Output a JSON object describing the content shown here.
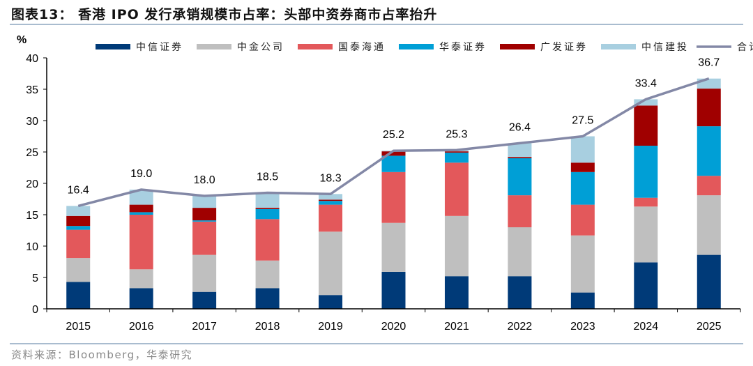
{
  "title": "图表13：  香港 IPO 发行承销规模市占率：头部中资券商市占率抬升",
  "source": "资料来源：Bloomberg，华泰研究",
  "chart_data": {
    "type": "bar",
    "stacked": true,
    "ylabel": "%",
    "ylim": [
      0,
      40
    ],
    "yticks": [
      0,
      5,
      10,
      15,
      20,
      25,
      30,
      35,
      40
    ],
    "legend_position": "top",
    "categories": [
      "2015",
      "2016",
      "2017",
      "2018",
      "2019",
      "2020",
      "2021",
      "2022",
      "2023",
      "2024",
      "2025"
    ],
    "series": [
      {
        "name": "中信证券",
        "color": "#003a78",
        "values": [
          4.3,
          3.3,
          2.7,
          3.3,
          2.2,
          5.9,
          5.2,
          5.2,
          2.6,
          7.4,
          8.6
        ]
      },
      {
        "name": "中金公司",
        "color": "#bfbfbf",
        "values": [
          3.8,
          3.0,
          5.9,
          4.4,
          10.1,
          7.8,
          9.6,
          7.8,
          9.1,
          8.9,
          9.5
        ]
      },
      {
        "name": "国泰海通",
        "color": "#e3585b",
        "values": [
          4.5,
          8.7,
          5.3,
          6.6,
          4.3,
          8.1,
          8.5,
          5.1,
          4.9,
          1.4,
          3.1
        ]
      },
      {
        "name": "华泰证券",
        "color": "#009fd6",
        "values": [
          0.6,
          0.4,
          0.2,
          1.6,
          0.6,
          2.6,
          1.6,
          5.9,
          5.2,
          8.3,
          7.9
        ]
      },
      {
        "name": "广发证券",
        "color": "#a00000",
        "values": [
          1.6,
          1.2,
          2.0,
          0.2,
          0.2,
          0.7,
          0.2,
          0.2,
          1.5,
          6.4,
          6.0
        ]
      },
      {
        "name": "中信建投",
        "color": "#a8cfe0",
        "values": [
          1.6,
          2.4,
          1.9,
          2.4,
          0.9,
          0.1,
          0.2,
          2.2,
          4.2,
          1.0,
          1.6
        ]
      }
    ],
    "line": {
      "name": "合计",
      "color": "#8388a6",
      "values": [
        16.4,
        19.0,
        18.0,
        18.5,
        18.3,
        25.2,
        25.3,
        26.4,
        27.5,
        33.4,
        36.7
      ],
      "labels": [
        "16.4",
        "19.0",
        "18.0",
        "18.5",
        "18.3",
        "25.2",
        "25.3",
        "26.4",
        "27.5",
        "33.4",
        "36.7"
      ]
    }
  }
}
